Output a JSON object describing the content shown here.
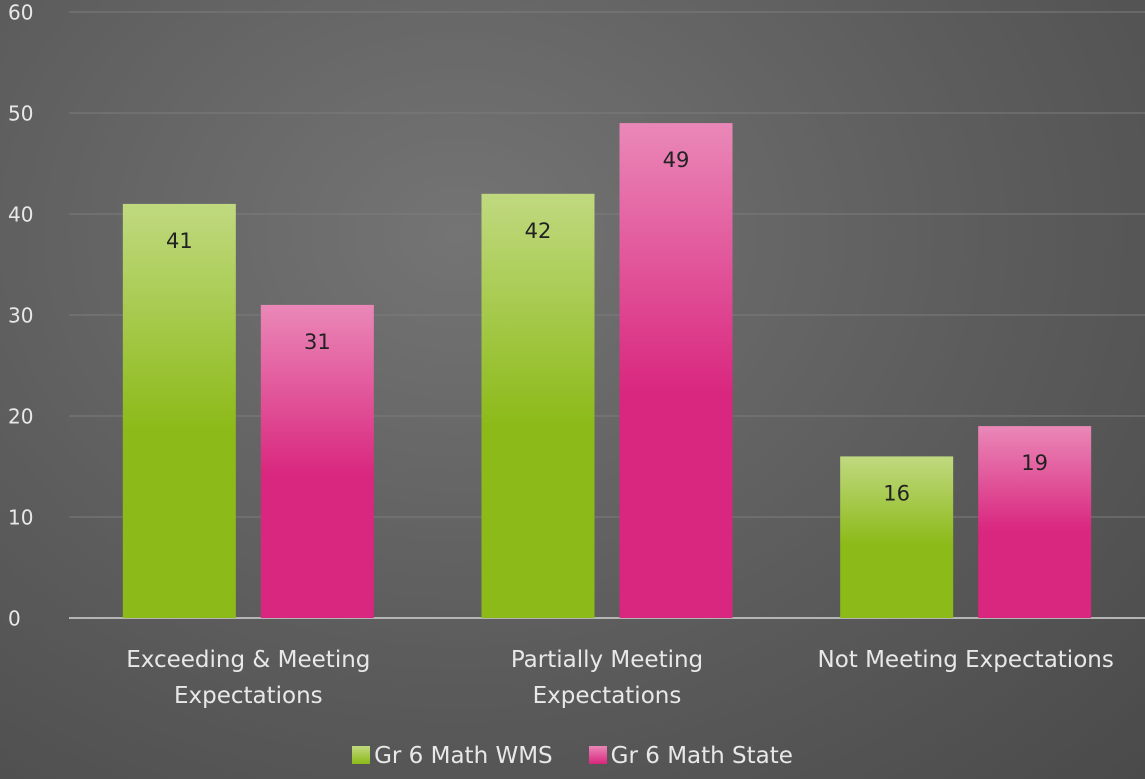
{
  "chart_data": {
    "type": "bar",
    "categories": [
      "Exceeding & Meeting Expectations",
      "Partially Meeting Expectations",
      "Not Meeting Expectations"
    ],
    "series": [
      {
        "name": "Gr 6 Math WMS",
        "color": "#8cba18",
        "values": [
          41,
          42,
          16
        ]
      },
      {
        "name": "Gr 6 Math State",
        "color": "#d9267e",
        "values": [
          31,
          49,
          19
        ]
      }
    ],
    "ylim": [
      0,
      60
    ],
    "yticks": [
      0,
      10,
      20,
      30,
      40,
      50,
      60
    ],
    "grid": true,
    "legend": "bottom"
  }
}
